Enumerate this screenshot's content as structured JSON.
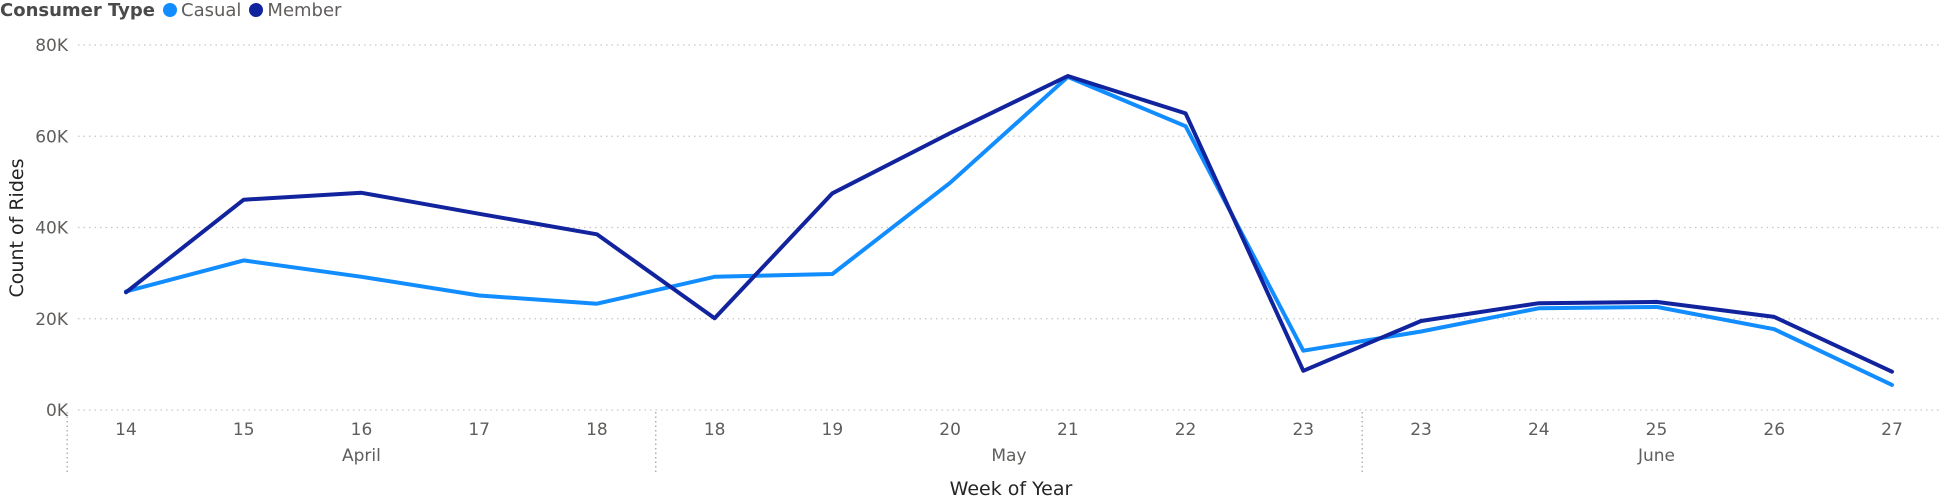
{
  "legend": {
    "title": "Consumer Type",
    "items": [
      {
        "label": "Casual",
        "color": "#118dff"
      },
      {
        "label": "Member",
        "color": "#12239e"
      }
    ]
  },
  "chart_data": {
    "type": "line",
    "title": "",
    "xlabel": "Week of Year",
    "ylabel": "Count of Rides",
    "ylim": [
      0,
      80000
    ],
    "y_ticks": [
      "0K",
      "20K",
      "40K",
      "60K",
      "80K"
    ],
    "grid": true,
    "legend_position": "top-left",
    "categories": [
      "14",
      "15",
      "16",
      "17",
      "18",
      "18",
      "19",
      "20",
      "21",
      "22",
      "23",
      "23",
      "24",
      "25",
      "26",
      "27"
    ],
    "groups": [
      {
        "label": "April",
        "count": 5
      },
      {
        "label": "May",
        "count": 6
      },
      {
        "label": "June",
        "count": 5
      }
    ],
    "series": [
      {
        "name": "Casual",
        "color": "#118dff",
        "values": [
          26000,
          32800,
          29200,
          25100,
          23300,
          29200,
          29800,
          49800,
          73000,
          62200,
          13000,
          17200,
          22300,
          22600,
          17700,
          5500
        ]
      },
      {
        "name": "Member",
        "color": "#12239e",
        "values": [
          25800,
          46100,
          47600,
          43000,
          38500,
          20100,
          47500,
          60700,
          73200,
          65000,
          8600,
          19500,
          23400,
          23700,
          20400,
          8400
        ]
      }
    ]
  }
}
